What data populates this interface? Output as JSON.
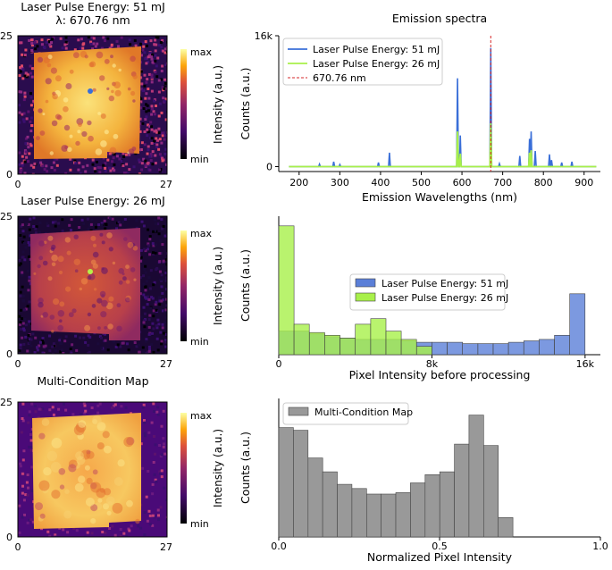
{
  "maps": [
    {
      "title_line1": "Laser Pulse Energy: 51 mJ",
      "title_line2": "λ: 670.76 nm",
      "y_top": "25",
      "y_bottom": "0",
      "x_left": "0",
      "x_right": "27",
      "cbar_max": "max",
      "cbar_min": "min",
      "cbar_label": "Intensity (a.u.)",
      "colormap": "plasma-bright",
      "marker_color": "#3a6fd8"
    },
    {
      "title_line1": "Laser Pulse Energy: 26 mJ",
      "y_top": "25",
      "y_bottom": "0",
      "x_left": "0",
      "x_right": "27",
      "cbar_max": "max",
      "cbar_min": "min",
      "cbar_label": "Intensity (a.u.)",
      "colormap": "plasma-mid",
      "marker_color": "#b6f04a"
    },
    {
      "title_line1": "Multi-Condition Map",
      "y_top": "25",
      "y_bottom": "0",
      "x_left": "0",
      "x_right": "27",
      "cbar_max": "max",
      "cbar_min": "min",
      "cbar_label": "Intensity (a.u.)",
      "colormap": "plasma-smooth"
    }
  ],
  "chart_data": [
    {
      "type": "line",
      "title": "Emission spectra",
      "xlabel": "Emission Wavelengths (nm)",
      "ylabel": "Counts (a.u.)",
      "xlim": [
        150,
        940
      ],
      "ylim": [
        -600,
        16000
      ],
      "xticks": [
        200,
        300,
        400,
        500,
        600,
        700,
        800,
        900
      ],
      "ytick_labels": [
        {
          "value": 0,
          "label": "0"
        },
        {
          "value": 16000,
          "label": "16k"
        }
      ],
      "baseline_range": [
        175,
        930
      ],
      "series": [
        {
          "name": "Laser Pulse Energy: 51 mJ",
          "color": "#3a6fd8",
          "peaks": [
            [
              250,
              300
            ],
            [
              285,
              600
            ],
            [
              300,
              250
            ],
            [
              395,
              500
            ],
            [
              422,
              1700
            ],
            [
              589,
              10800
            ],
            [
              596,
              3800
            ],
            [
              670.8,
              14500
            ],
            [
              692,
              350
            ],
            [
              742,
              1300
            ],
            [
              766,
              3400
            ],
            [
              770,
              4300
            ],
            [
              780,
              1900
            ],
            [
              815,
              1500
            ],
            [
              820,
              800
            ],
            [
              845,
              500
            ],
            [
              870,
              600
            ]
          ]
        },
        {
          "name": "Laser Pulse Energy: 26 mJ",
          "color": "#a8f04a",
          "peaks": [
            [
              589,
              4300
            ],
            [
              596,
              1600
            ],
            [
              670.8,
              5300
            ],
            [
              766,
              1700
            ],
            [
              770,
              2000
            ]
          ]
        }
      ],
      "vline": {
        "name": "670.76 nm",
        "x": 670.76,
        "color": "#d62728"
      },
      "legend": "top-left"
    },
    {
      "type": "histogram",
      "xlabel": "Pixel Intensity before processing",
      "ylabel": "Counts (a.u.)",
      "xlim": [
        0,
        16800
      ],
      "ylim": [
        0,
        1.0
      ],
      "xtick_labels": [
        {
          "value": 0,
          "label": "0"
        },
        {
          "value": 8000,
          "label": "8k"
        },
        {
          "value": 16000,
          "label": "16k"
        }
      ],
      "bin_width": 800,
      "series": [
        {
          "name": "Laser Pulse Energy: 51 mJ",
          "color": "#5b7fd8",
          "bin_starts": [
            0,
            800,
            1600,
            2400,
            3200,
            4000,
            4800,
            5600,
            6400,
            7200,
            8000,
            8800,
            9600,
            10400,
            11200,
            12000,
            12800,
            13600,
            14400,
            15200
          ],
          "values": [
            0.17,
            0.17,
            0.15,
            0.13,
            0.12,
            0.11,
            0.11,
            0.11,
            0.1,
            0.09,
            0.09,
            0.09,
            0.08,
            0.08,
            0.08,
            0.09,
            0.1,
            0.11,
            0.14,
            0.44
          ]
        },
        {
          "name": "Laser Pulse Energy: 26 mJ",
          "color": "#a8f04a",
          "bin_starts": [
            0,
            800,
            1600,
            2400,
            3200,
            4000,
            4800,
            5600,
            6400,
            7200
          ],
          "values": [
            0.93,
            0.22,
            0.16,
            0.14,
            0.12,
            0.22,
            0.26,
            0.17,
            0.11,
            0.06
          ]
        }
      ],
      "legend": "center"
    },
    {
      "type": "histogram",
      "xlabel": "Normalized Pixel Intensity",
      "ylabel": "Counts (a.u.)",
      "xlim": [
        0,
        1.0
      ],
      "ylim": [
        0,
        1.0
      ],
      "xtick_labels": [
        {
          "value": 0,
          "label": "0.0"
        },
        {
          "value": 0.5,
          "label": "0.5"
        },
        {
          "value": 1.0,
          "label": "1.0"
        }
      ],
      "bin_width": 0.0455,
      "series": [
        {
          "name": "Multi-Condition Map",
          "color": "#999999",
          "bin_starts": [
            0.0,
            0.0455,
            0.091,
            0.1365,
            0.182,
            0.2275,
            0.273,
            0.3185,
            0.364,
            0.4095,
            0.455,
            0.5005,
            0.546,
            0.5915,
            0.637,
            0.6825
          ],
          "values": [
            0.79,
            0.77,
            0.57,
            0.47,
            0.38,
            0.35,
            0.31,
            0.31,
            0.32,
            0.39,
            0.45,
            0.47,
            0.67,
            0.88,
            0.66,
            0.14
          ]
        }
      ],
      "legend": "top-left"
    }
  ]
}
